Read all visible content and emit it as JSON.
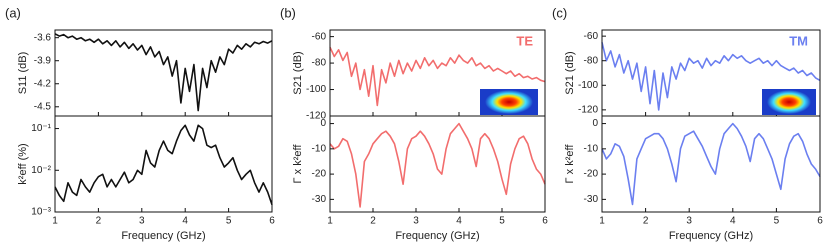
{
  "chart_data": [
    {
      "type": "line",
      "panel": "(a)",
      "ylabel": "S11 (dB)",
      "color": "#111111",
      "x": [
        1.0,
        1.1,
        1.2,
        1.3,
        1.4,
        1.5,
        1.6,
        1.7,
        1.8,
        1.9,
        2.0,
        2.1,
        2.2,
        2.3,
        2.4,
        2.5,
        2.6,
        2.7,
        2.8,
        2.9,
        3.0,
        3.1,
        3.2,
        3.3,
        3.4,
        3.5,
        3.6,
        3.7,
        3.8,
        3.9,
        4.0,
        4.1,
        4.2,
        4.3,
        4.4,
        4.5,
        4.6,
        4.7,
        4.8,
        4.9,
        5.0,
        5.1,
        5.2,
        5.3,
        5.4,
        5.5,
        5.6,
        5.7,
        5.8,
        5.9,
        6.0
      ],
      "values": [
        -3.55,
        -3.58,
        -3.56,
        -3.6,
        -3.58,
        -3.62,
        -3.6,
        -3.64,
        -3.62,
        -3.66,
        -3.62,
        -3.68,
        -3.64,
        -3.7,
        -3.64,
        -3.72,
        -3.66,
        -3.74,
        -3.68,
        -3.76,
        -3.7,
        -3.82,
        -3.72,
        -3.85,
        -3.78,
        -3.95,
        -3.85,
        -4.1,
        -3.9,
        -4.45,
        -4.0,
        -4.3,
        -3.95,
        -4.55,
        -4.0,
        -4.25,
        -3.9,
        -4.05,
        -3.85,
        -3.95,
        -3.75,
        -3.8,
        -3.7,
        -3.75,
        -3.68,
        -3.72,
        -3.66,
        -3.68,
        -3.65,
        -3.67,
        -3.64
      ],
      "xlim": [
        1,
        6
      ],
      "xticks": [
        1,
        2,
        3,
        4,
        5,
        6
      ],
      "ylim": [
        -4.62,
        -3.5
      ],
      "yticks": [
        -3.6,
        -3.9,
        -4.2,
        -4.5
      ]
    },
    {
      "type": "line",
      "ylabel": "k²eff (%)",
      "xlabel": "Frequency (GHz)",
      "color": "#111111",
      "yscale": "log",
      "x": [
        1.0,
        1.1,
        1.2,
        1.3,
        1.4,
        1.5,
        1.6,
        1.7,
        1.8,
        1.9,
        2.0,
        2.1,
        2.2,
        2.3,
        2.4,
        2.5,
        2.6,
        2.7,
        2.8,
        2.9,
        3.0,
        3.1,
        3.2,
        3.3,
        3.4,
        3.5,
        3.6,
        3.7,
        3.8,
        3.9,
        4.0,
        4.1,
        4.2,
        4.3,
        4.4,
        4.5,
        4.6,
        4.7,
        4.8,
        4.9,
        5.0,
        5.1,
        5.2,
        5.3,
        5.4,
        5.5,
        5.6,
        5.7,
        5.8,
        5.9,
        6.0
      ],
      "values": [
        0.004,
        0.0025,
        0.0018,
        0.005,
        0.003,
        0.0025,
        0.006,
        0.004,
        0.003,
        0.005,
        0.007,
        0.008,
        0.004,
        0.006,
        0.004,
        0.006,
        0.009,
        0.005,
        0.006,
        0.01,
        0.008,
        0.03,
        0.015,
        0.012,
        0.03,
        0.05,
        0.03,
        0.025,
        0.05,
        0.09,
        0.12,
        0.07,
        0.05,
        0.12,
        0.1,
        0.04,
        0.035,
        0.04,
        0.02,
        0.012,
        0.015,
        0.02,
        0.01,
        0.006,
        0.008,
        0.01,
        0.005,
        0.003,
        0.005,
        0.003,
        0.0015
      ],
      "xlim": [
        1,
        6
      ],
      "xticks": [
        1,
        2,
        3,
        4,
        5,
        6
      ],
      "ylim": [
        0.001,
        0.2
      ],
      "yticks": [
        {
          "value": 0.001,
          "label": "10⁻³"
        },
        {
          "value": 0.01,
          "label": "10⁻²"
        },
        {
          "value": 0.1,
          "label": "10⁻¹"
        }
      ]
    },
    {
      "type": "line",
      "panel": "(b)",
      "ylabel": "S21 (dB)",
      "annotation": "TE",
      "color": "#f26d6d",
      "x": [
        1.0,
        1.1,
        1.2,
        1.3,
        1.4,
        1.5,
        1.6,
        1.7,
        1.8,
        1.9,
        2.0,
        2.1,
        2.2,
        2.3,
        2.4,
        2.5,
        2.6,
        2.7,
        2.8,
        2.9,
        3.0,
        3.1,
        3.2,
        3.3,
        3.4,
        3.5,
        3.6,
        3.7,
        3.8,
        3.9,
        4.0,
        4.1,
        4.2,
        4.3,
        4.4,
        4.5,
        4.6,
        4.7,
        4.8,
        4.9,
        5.0,
        5.1,
        5.2,
        5.3,
        5.4,
        5.5,
        5.6,
        5.7,
        5.8,
        5.9,
        6.0
      ],
      "values": [
        -68,
        -75,
        -70,
        -78,
        -72,
        -90,
        -80,
        -100,
        -85,
        -105,
        -82,
        -112,
        -85,
        -95,
        -80,
        -90,
        -78,
        -88,
        -80,
        -86,
        -78,
        -84,
        -76,
        -82,
        -78,
        -84,
        -80,
        -82,
        -76,
        -80,
        -74,
        -78,
        -80,
        -76,
        -82,
        -80,
        -84,
        -82,
        -86,
        -84,
        -86,
        -88,
        -86,
        -90,
        -88,
        -91,
        -90,
        -92,
        -91,
        -93,
        -94
      ],
      "xlim": [
        1,
        6
      ],
      "xticks": [
        1,
        2,
        3,
        4,
        5,
        6
      ],
      "ylim": [
        -120,
        -55
      ],
      "yticks": [
        -60,
        -80,
        -100,
        -120
      ]
    },
    {
      "type": "line",
      "ylabel": "Γ x k²eff",
      "xlabel": "Frequency (GHz)",
      "color": "#f26d6d",
      "x": [
        1.0,
        1.1,
        1.2,
        1.3,
        1.4,
        1.5,
        1.6,
        1.7,
        1.8,
        1.9,
        2.0,
        2.1,
        2.2,
        2.3,
        2.4,
        2.5,
        2.6,
        2.7,
        2.8,
        2.9,
        3.0,
        3.1,
        3.2,
        3.3,
        3.4,
        3.5,
        3.6,
        3.7,
        3.8,
        3.9,
        4.0,
        4.1,
        4.2,
        4.3,
        4.4,
        4.5,
        4.6,
        4.7,
        4.8,
        4.9,
        5.0,
        5.1,
        5.2,
        5.3,
        5.4,
        5.5,
        5.6,
        5.7,
        5.8,
        5.9,
        6.0
      ],
      "values": [
        -8,
        -10,
        -9,
        -6,
        -7,
        -12,
        -20,
        -33,
        -15,
        -12,
        -8,
        -6,
        -4,
        -3,
        -5,
        -8,
        -15,
        -24,
        -10,
        -6,
        -5,
        -3,
        -5,
        -8,
        -12,
        -18,
        -20,
        -10,
        -4,
        -2,
        0,
        -3,
        -6,
        -10,
        -17,
        -6,
        -4,
        -6,
        -10,
        -15,
        -22,
        -28,
        -16,
        -10,
        -6,
        -5,
        -8,
        -14,
        -18,
        -20,
        -24
      ],
      "xlim": [
        1,
        6
      ],
      "xticks": [
        1,
        2,
        3,
        4,
        5,
        6
      ],
      "ylim": [
        -35,
        3
      ],
      "yticks": [
        0,
        -10,
        -20,
        -30
      ]
    },
    {
      "type": "line",
      "panel": "(c)",
      "ylabel": "S21 (dB)",
      "annotation": "TM",
      "color": "#6b7ff0",
      "x": [
        1.0,
        1.1,
        1.2,
        1.3,
        1.4,
        1.5,
        1.6,
        1.7,
        1.8,
        1.9,
        2.0,
        2.1,
        2.2,
        2.3,
        2.4,
        2.5,
        2.6,
        2.7,
        2.8,
        2.9,
        3.0,
        3.1,
        3.2,
        3.3,
        3.4,
        3.5,
        3.6,
        3.7,
        3.8,
        3.9,
        4.0,
        4.1,
        4.2,
        4.3,
        4.4,
        4.5,
        4.6,
        4.7,
        4.8,
        4.9,
        5.0,
        5.1,
        5.2,
        5.3,
        5.4,
        5.5,
        5.6,
        5.7,
        5.8,
        5.9,
        6.0
      ],
      "values": [
        -65,
        -80,
        -72,
        -85,
        -75,
        -90,
        -80,
        -95,
        -82,
        -105,
        -85,
        -115,
        -88,
        -120,
        -90,
        -110,
        -85,
        -95,
        -82,
        -88,
        -78,
        -82,
        -80,
        -86,
        -78,
        -84,
        -80,
        -82,
        -76,
        -80,
        -75,
        -78,
        -76,
        -80,
        -82,
        -80,
        -78,
        -82,
        -80,
        -84,
        -80,
        -84,
        -86,
        -88,
        -86,
        -90,
        -88,
        -92,
        -90,
        -94,
        -96
      ],
      "xlim": [
        1,
        6
      ],
      "xticks": [
        1,
        2,
        3,
        4,
        5,
        6
      ],
      "ylim": [
        -125,
        -55
      ],
      "yticks": [
        -60,
        -80,
        -100,
        -120
      ]
    },
    {
      "type": "line",
      "ylabel": "Γ x k²eff",
      "xlabel": "Frequency (GHz)",
      "color": "#6b7ff0",
      "x": [
        1.0,
        1.1,
        1.2,
        1.3,
        1.4,
        1.5,
        1.6,
        1.7,
        1.8,
        1.9,
        2.0,
        2.1,
        2.2,
        2.3,
        2.4,
        2.5,
        2.6,
        2.7,
        2.8,
        2.9,
        3.0,
        3.1,
        3.2,
        3.3,
        3.4,
        3.5,
        3.6,
        3.7,
        3.8,
        3.9,
        4.0,
        4.1,
        4.2,
        4.3,
        4.4,
        4.5,
        4.6,
        4.7,
        4.8,
        4.9,
        5.0,
        5.1,
        5.2,
        5.3,
        5.4,
        5.5,
        5.6,
        5.7,
        5.8,
        5.9,
        6.0
      ],
      "values": [
        -10,
        -14,
        -12,
        -8,
        -9,
        -13,
        -22,
        -32,
        -14,
        -10,
        -6,
        -5,
        -4,
        -4,
        -6,
        -10,
        -16,
        -23,
        -10,
        -5,
        -4,
        -3,
        -6,
        -9,
        -13,
        -17,
        -20,
        -10,
        -4,
        -2,
        0,
        -2,
        -5,
        -9,
        -15,
        -6,
        -4,
        -6,
        -10,
        -14,
        -20,
        -26,
        -14,
        -8,
        -5,
        -4,
        -7,
        -12,
        -16,
        -18,
        -21
      ],
      "xlim": [
        1,
        6
      ],
      "xticks": [
        1,
        2,
        3,
        4,
        5,
        6
      ],
      "ylim": [
        -35,
        3
      ],
      "yticks": [
        0,
        -10,
        -20,
        -30
      ]
    }
  ]
}
